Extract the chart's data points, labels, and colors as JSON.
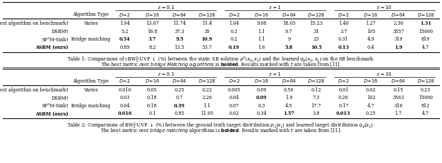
{
  "table1_rows": [
    [
      "Best algorithm on benchmark†",
      "Varies",
      "1.94",
      "13.67",
      "11.74",
      "11.4",
      "1.04",
      "9.08",
      "18.05",
      "15.23",
      "1.40",
      "1.27",
      "2.36",
      "1.31"
    ],
    [
      "DSBM†",
      "",
      "5.2",
      "16.8",
      "37.3",
      "35",
      "0.3",
      "1.1",
      "9.7",
      "31",
      "3.7",
      "105",
      "3557",
      "15000"
    ],
    [
      "SF²M-Sink†",
      "Bridge matching",
      "0.54",
      "3.7",
      "9.5",
      "10.9",
      "0.2",
      "1.1",
      "9",
      "23",
      "0.31",
      "4.9",
      "319",
      "819"
    ],
    [
      "ASBM (ours)",
      "",
      "0.89",
      "8.2",
      "13.5",
      "53.7",
      "0.19",
      "1.6",
      "5.8",
      "10.5",
      "0.13",
      "0.4",
      "1.9",
      "4.7"
    ]
  ],
  "table1_bold": [
    [
      false,
      false,
      false,
      false,
      false,
      false,
      false,
      false,
      false,
      false,
      false,
      false,
      false,
      true
    ],
    [
      false,
      false,
      false,
      false,
      false,
      false,
      false,
      false,
      false,
      false,
      false,
      false,
      false,
      false
    ],
    [
      false,
      false,
      true,
      true,
      true,
      true,
      false,
      false,
      false,
      false,
      false,
      false,
      false,
      false
    ],
    [
      true,
      false,
      false,
      false,
      false,
      false,
      true,
      false,
      true,
      true,
      true,
      false,
      true,
      false
    ]
  ],
  "table2_rows": [
    [
      "Best algorithm on benchmark†",
      "Varies",
      "0.016",
      "0.05",
      "0.25",
      "0.22",
      "0.005",
      "0.09",
      "0.56",
      "0.12",
      "0.01",
      "0.02",
      "0.15",
      "0.23"
    ],
    [
      "DSBM†",
      "",
      "0.03",
      "0.18",
      "0.7",
      "2.26",
      "0.04",
      "0.09",
      "1.9",
      "7.3",
      "0.26",
      "102",
      "3563",
      "15000"
    ],
    [
      "SF²M-Sink†",
      "Bridge matching",
      "0.04",
      "0.18",
      "0.39",
      "1.1",
      "0.07",
      "0.3",
      "4.5",
      "17.7",
      "0.17",
      "4.7",
      "316",
      "812"
    ],
    [
      "ASBM (ours)",
      "",
      "0.016",
      "0.1",
      "0.85",
      "11.05",
      "0.02",
      "0.34",
      "1.57",
      "3.8",
      "0.013",
      "0.25",
      "1.7",
      "4.7"
    ]
  ],
  "table2_bold": [
    [
      false,
      false,
      false,
      false,
      false,
      false,
      false,
      false,
      false,
      false,
      false,
      false,
      false,
      false
    ],
    [
      false,
      false,
      false,
      false,
      false,
      false,
      false,
      true,
      false,
      false,
      false,
      false,
      false,
      false
    ],
    [
      false,
      false,
      false,
      false,
      true,
      false,
      false,
      false,
      false,
      false,
      false,
      false,
      false,
      false
    ],
    [
      true,
      false,
      true,
      false,
      false,
      false,
      false,
      false,
      true,
      false,
      true,
      false,
      false,
      false
    ]
  ],
  "eps_labels": [
    "ε = 0.1",
    "ε = 1",
    "ε = 10"
  ],
  "dim_labels": [
    "D = 2",
    "D = 16",
    "D = 64",
    "D = 128"
  ],
  "cap1_line1": "Table 1: Comparisons of cBW",
  "cap1_line2": "The best metric over bridge Matching algorithms is bolded. Results marked with † are taken from [11].",
  "cap2_line1": "Table 2: Comparisons of BW",
  "cap2_line2": "The best metric over bridge matching algorithms is bolded. Results marked with † are taken from [11]."
}
